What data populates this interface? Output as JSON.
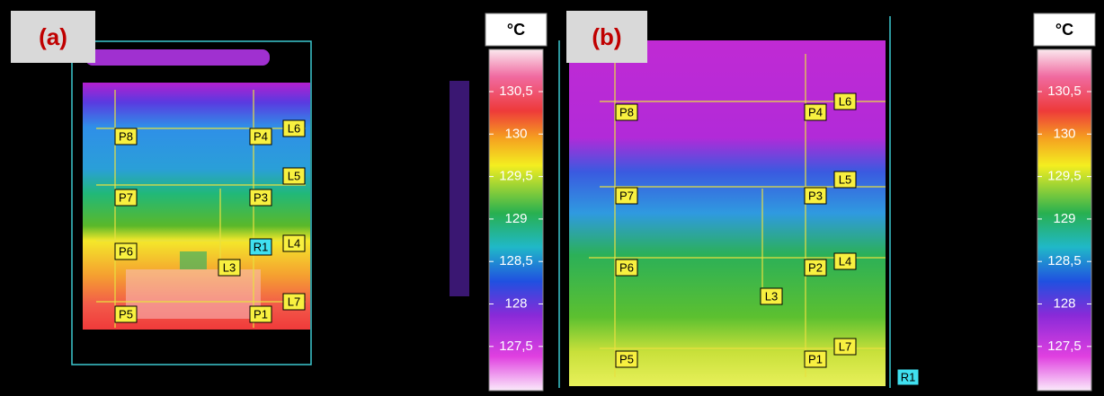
{
  "panels": [
    {
      "label": "(a)",
      "markers": [
        "P8",
        "P4",
        "P7",
        "P3",
        "P6",
        "R1",
        "P5",
        "P1",
        "L6",
        "L5",
        "L4",
        "L3",
        "L7"
      ]
    },
    {
      "label": "(b)",
      "markers": [
        "P8",
        "P4",
        "P7",
        "P3",
        "P6",
        "P2",
        "P5",
        "P1",
        "L6",
        "L5",
        "L4",
        "L3",
        "L7",
        "R1"
      ]
    }
  ],
  "colorbars": [
    {
      "unit": "°C",
      "ticks": [
        "130,5",
        "130",
        "129,5",
        "129",
        "128,5",
        "128",
        "127,5"
      ]
    },
    {
      "unit": "°C",
      "ticks": [
        "130,5",
        "130",
        "129,5",
        "129",
        "128,5",
        "128",
        "127,5"
      ]
    }
  ]
}
